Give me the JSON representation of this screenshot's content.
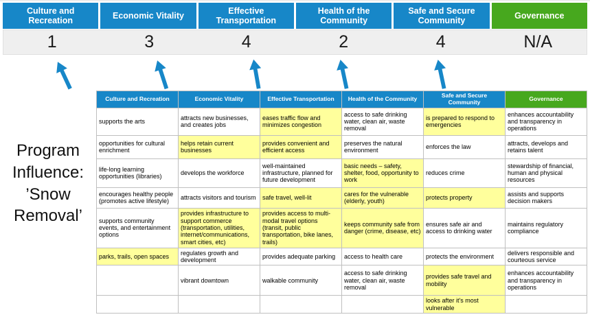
{
  "title": "Program Influence: ’Snow Removal’",
  "colors": {
    "blue": "#1787c8",
    "green": "#47a81e",
    "highlight": "#ffff9c",
    "score_bg": "#efefef"
  },
  "summary": {
    "columns": [
      {
        "label": "Culture and Recreation",
        "score": "1",
        "theme": "blue"
      },
      {
        "label": "Economic Vitality",
        "score": "3",
        "theme": "blue"
      },
      {
        "label": "Effective Transportation",
        "score": "4",
        "theme": "blue"
      },
      {
        "label": "Health of the Community",
        "score": "2",
        "theme": "blue"
      },
      {
        "label": "Safe and Secure Community",
        "score": "4",
        "theme": "blue"
      },
      {
        "label": "Governance",
        "score": "N/A",
        "theme": "green"
      }
    ]
  },
  "arrows": [
    "up-arrow",
    "up-arrow",
    "up-arrow",
    "up-arrow",
    "up-arrow"
  ],
  "table": {
    "headers": [
      {
        "label": "Culture and Recreation",
        "theme": "blue"
      },
      {
        "label": "Economic Vitality",
        "theme": "blue"
      },
      {
        "label": "Effective Transportation",
        "theme": "blue"
      },
      {
        "label": "Health of the Community",
        "theme": "blue"
      },
      {
        "label": "Safe and Secure Community",
        "theme": "blue"
      },
      {
        "label": "Governance",
        "theme": "green"
      }
    ],
    "rows": [
      [
        {
          "t": "supports the arts"
        },
        {
          "t": "attracts new businesses, and creates jobs"
        },
        {
          "t": "eases traffic flow and minimizes congestion",
          "h": true
        },
        {
          "t": "access to safe drinking water, clean air, waste removal"
        },
        {
          "t": "is prepared to respond to emergencies",
          "h": true
        },
        {
          "t": "enhances accountability and transparency in operations"
        }
      ],
      [
        {
          "t": "opportunities for cultural enrichment"
        },
        {
          "t": "helps retain current businesses",
          "h": true
        },
        {
          "t": "provides convenient and efficient access",
          "h": true
        },
        {
          "t": "preserves the natural environment"
        },
        {
          "t": "enforces the law"
        },
        {
          "t": "attracts, develops and retains talent"
        }
      ],
      [
        {
          "t": "life-long learning opportunities (libraries)"
        },
        {
          "t": "develops the workforce"
        },
        {
          "t": "well-maintained infrastructure, planned for future development"
        },
        {
          "t": "basic needs – safety, shelter, food, opportunity to work",
          "h": true
        },
        {
          "t": "reduces crime"
        },
        {
          "t": "stewardship of financial, human and physical resources"
        }
      ],
      [
        {
          "t": "encourages healthy people (promotes active lifestyle)"
        },
        {
          "t": "attracts visitors and tourism"
        },
        {
          "t": "safe travel, well-lit",
          "h": true
        },
        {
          "t": "cares for the vulnerable (elderly, youth)",
          "h": true
        },
        {
          "t": "protects property",
          "h": true
        },
        {
          "t": "assists and supports decision makers"
        }
      ],
      [
        {
          "t": "supports community events, and entertainment options"
        },
        {
          "t": "provides infrastructure to support commerce (transportation, utilities, internet/communications, smart cities, etc)",
          "h": true
        },
        {
          "t": "provides access to multi-modal travel options (transit, public transportation, bike lanes, trails)",
          "h": true
        },
        {
          "t": "keeps community safe from danger (crime, disease, etc)",
          "h": true
        },
        {
          "t": "ensures safe air and access to drinking water"
        },
        {
          "t": "maintains regulatory compliance"
        }
      ],
      [
        {
          "t": "parks, trails, open spaces",
          "h": true
        },
        {
          "t": "regulates growth and development"
        },
        {
          "t": "provides adequate parking"
        },
        {
          "t": "access to health care"
        },
        {
          "t": "protects the environment"
        },
        {
          "t": "delivers responsible and courteous service"
        }
      ],
      [
        {
          "t": ""
        },
        {
          "t": "vibrant downtown"
        },
        {
          "t": "walkable community"
        },
        {
          "t": "access to safe drinking water, clean air, waste removal"
        },
        {
          "t": "provides safe travel and mobility",
          "h": true
        },
        {
          "t": "enhances accountability and transparency in operations"
        }
      ],
      [
        {
          "t": ""
        },
        {
          "t": ""
        },
        {
          "t": ""
        },
        {
          "t": ""
        },
        {
          "t": "looks after it's most vulnerable",
          "h": true
        },
        {
          "t": ""
        }
      ]
    ]
  }
}
